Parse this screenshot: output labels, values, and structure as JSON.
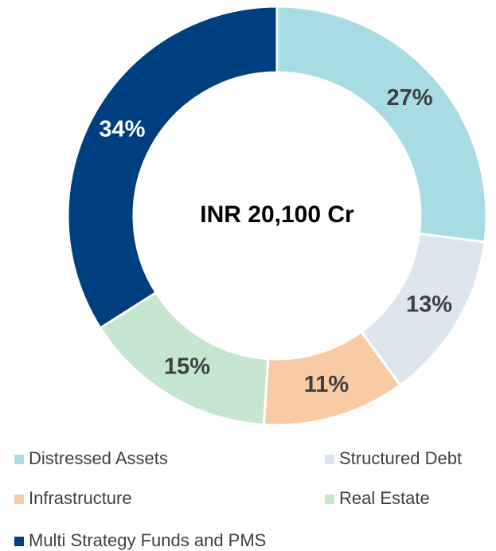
{
  "chart_data": {
    "type": "donut",
    "center_label": "INR 20,100 Cr",
    "categories": [
      "Distressed Assets",
      "Structured Debt",
      "Infrastructure",
      "Real Estate",
      "Multi Strategy Funds and PMS"
    ],
    "values": [
      27,
      13,
      11,
      15,
      34
    ],
    "value_labels": [
      "27%",
      "13%",
      "11%",
      "15%",
      "34%"
    ],
    "colors": [
      "#a8dce3",
      "#dde5ef",
      "#f9cba4",
      "#c6e6cf",
      "#003f7f"
    ]
  }
}
